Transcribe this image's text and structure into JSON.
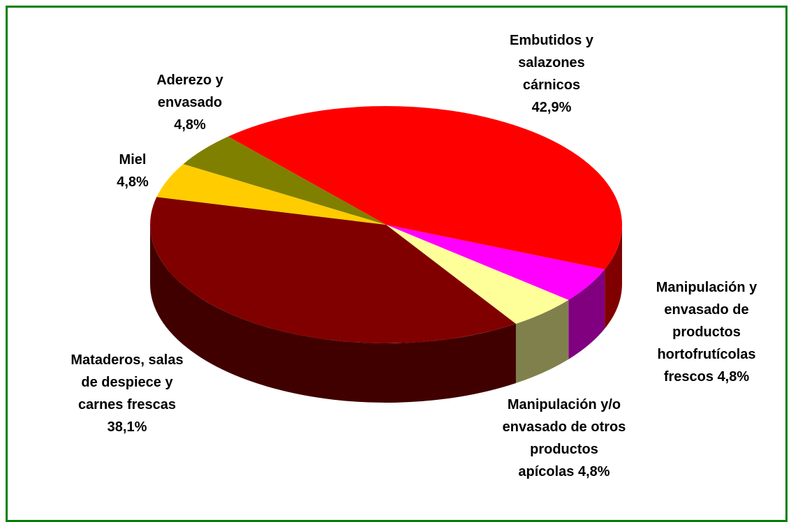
{
  "chart_data": {
    "type": "pie",
    "categories": [
      "Embutidos y salazones cárnicos",
      "Manipulación y envasado de productos hortofrutícolas frescos",
      "Manipulación y/o envasado de otros productos apícolas",
      "Mataderos, salas de despiece y carnes frescas",
      "Miel",
      "Aderezo y envasado"
    ],
    "values": [
      42.9,
      4.8,
      4.8,
      38.1,
      4.8,
      4.8
    ],
    "value_labels": [
      "42,9%",
      "4,8%",
      "4,8%",
      "38,1%",
      "4,8%",
      "4,8%"
    ],
    "colors": [
      "#ff0000",
      "#ff00ff",
      "#ffff99",
      "#800000",
      "#ffcc00",
      "#808000"
    ]
  }
}
